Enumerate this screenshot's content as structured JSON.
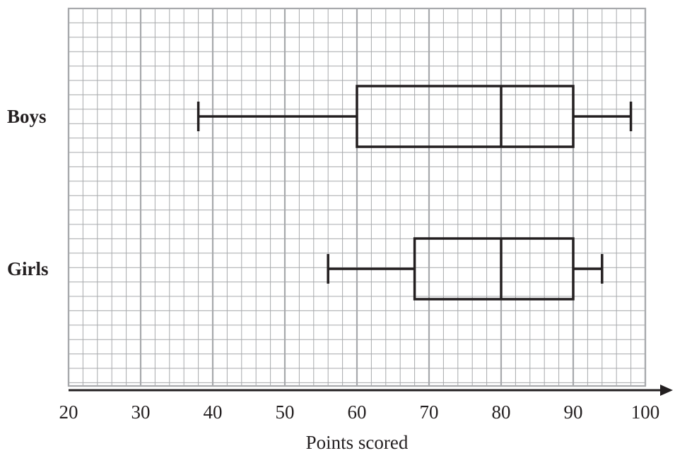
{
  "chart_data": {
    "type": "boxplot",
    "title": "",
    "xlabel": "Points scored",
    "ylabel": "",
    "xlim": [
      20,
      100
    ],
    "xticks": [
      20,
      30,
      40,
      50,
      60,
      70,
      80,
      90,
      100
    ],
    "grid": {
      "major_step": 10,
      "minor_step": 2,
      "vertical_minor_step": 2
    },
    "categories": [
      "Boys",
      "Girls"
    ],
    "series": [
      {
        "category": "Boys",
        "min": 38,
        "q1": 60,
        "median": 80,
        "q3": 90,
        "max": 98
      },
      {
        "category": "Girls",
        "min": 56,
        "q1": 68,
        "median": 80,
        "q3": 90,
        "max": 94
      }
    ],
    "colors": {
      "box": "#231f20",
      "major_grid": "#a7a9ac",
      "minor_grid": "#a7a9ac",
      "axis": "#231f20"
    }
  }
}
